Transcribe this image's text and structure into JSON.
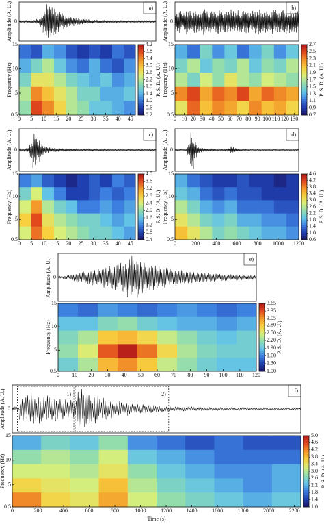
{
  "chart_data": [
    {
      "type": "spectrogram",
      "label": "a)",
      "ylabel": "Amplitude (A. U.)",
      "ylim": [
        -1,
        1
      ],
      "yticks": [
        0
      ],
      "amplitude": [
        0.05,
        0.05,
        0.06,
        0.08,
        0.1,
        0.15,
        0.3,
        0.6,
        0.95,
        0.85,
        0.7,
        0.55,
        0.45,
        0.35,
        0.3,
        0.25,
        0.2,
        0.18,
        0.15,
        0.13,
        0.12,
        0.1,
        0.1,
        0.09,
        0.08,
        0.08,
        0.07,
        0.07,
        0.06,
        0.06,
        0.06,
        0.05,
        0.05,
        0.05,
        0.05,
        0.05,
        0.05,
        0.05,
        0.05,
        0.05
      ],
      "xlim": [
        0,
        47
      ],
      "xticks": [
        0,
        5,
        10,
        15,
        20,
        25,
        30,
        35,
        40,
        45
      ],
      "freq_label": "Frequency (Hz)",
      "flim": [
        0.5,
        15
      ],
      "fticks": [
        0.5,
        5,
        10,
        15
      ],
      "z": [
        [
          1.0,
          0.8,
          1.4,
          1.2,
          0.8,
          0.6,
          0.8,
          0.6,
          1.0,
          0.8
        ],
        [
          1.4,
          1.8,
          2.2,
          1.6,
          1.2,
          1.0,
          1.4,
          1.0,
          0.8,
          1.2
        ],
        [
          1.8,
          2.6,
          2.6,
          2.2,
          1.8,
          1.6,
          1.4,
          1.6,
          1.2,
          1.4
        ],
        [
          2.2,
          3.4,
          3.0,
          2.6,
          2.2,
          1.8,
          1.8,
          1.4,
          1.4,
          1.6
        ],
        [
          2.0,
          3.8,
          3.4,
          2.8,
          2.2,
          2.0,
          1.6,
          1.6,
          1.4,
          1.2
        ]
      ],
      "zlim": [
        0.2,
        4.2
      ],
      "zticks": [
        0.2,
        0.6,
        {
          "value": 1,
          "label": "1.0"
        },
        1.4,
        1.8,
        2.2,
        2.6,
        {
          "value": 3,
          "label": "3.0"
        },
        3.4,
        3.8,
        4.2
      ],
      "colorbar_label": "P. S. D. (A. U.)"
    },
    {
      "type": "spectrogram",
      "label": "b)",
      "ylabel": "Amplitude (A. U.)",
      "ylim": [
        -1,
        1
      ],
      "yticks": [
        0
      ],
      "amplitude": [
        0.55,
        0.62,
        0.48,
        0.7,
        0.58,
        0.5,
        0.66,
        0.6,
        0.52,
        0.72,
        0.56,
        0.6,
        0.5,
        0.64,
        0.7,
        0.54,
        0.6,
        0.58,
        0.66,
        0.5,
        0.62,
        0.56,
        0.68,
        0.6,
        0.52,
        0.64,
        0.58,
        0.7,
        0.55,
        0.6,
        0.5,
        0.66,
        0.62,
        0.56,
        0.6,
        0.68,
        0.54,
        0.62,
        0.58,
        0.6
      ],
      "xlim": [
        0,
        135
      ],
      "xticks": [
        0,
        10,
        20,
        30,
        40,
        50,
        60,
        70,
        80,
        90,
        100,
        110,
        120,
        130
      ],
      "freq_label": "Frequency (Hz)",
      "flim": [
        0.5,
        15
      ],
      "fticks": [
        0.5,
        5,
        10,
        15
      ],
      "z": [
        [
          1.3,
          1.1,
          1.5,
          1.2,
          1.4,
          1.1,
          1.3,
          1.5,
          1.2,
          1.4
        ],
        [
          1.5,
          1.7,
          1.4,
          1.6,
          1.5,
          1.7,
          1.4,
          1.6,
          1.5,
          1.7
        ],
        [
          1.7,
          1.5,
          1.8,
          1.6,
          1.9,
          1.7,
          1.6,
          1.8,
          1.7,
          1.6
        ],
        [
          2.3,
          2.5,
          2.2,
          2.4,
          2.3,
          2.5,
          2.2,
          2.4,
          2.3,
          2.2
        ],
        [
          1.9,
          2.4,
          2.1,
          2.3,
          2.2,
          2.0,
          2.3,
          2.1,
          2.2,
          2.0
        ]
      ],
      "zlim": [
        0.7,
        2.7
      ],
      "zticks": [
        0.7,
        0.9,
        1.1,
        1.3,
        1.5,
        1.7,
        1.9,
        2.1,
        2.3,
        2.5,
        2.7
      ],
      "colorbar_label": "P. S. D. (A. U.)"
    },
    {
      "type": "spectrogram",
      "label": "c)",
      "ylabel": "Amplitude (A. U.)",
      "ylim": [
        -1,
        1
      ],
      "yticks": [
        0
      ],
      "amplitude": [
        0.05,
        0.05,
        0.1,
        0.4,
        0.95,
        0.6,
        0.35,
        0.2,
        0.15,
        0.1,
        0.1,
        0.08,
        0.08,
        0.07,
        0.06,
        0.06,
        0.06,
        0.05,
        0.05,
        0.05,
        0.05,
        0.05,
        0.05,
        0.05,
        0.05,
        0.04,
        0.04,
        0.04,
        0.04,
        0.04,
        0.04,
        0.04,
        0.04,
        0.04,
        0.04,
        0.04,
        0.04,
        0.04,
        0.04,
        0.04
      ],
      "xlim": [
        0,
        47
      ],
      "xticks": [
        0,
        5,
        10,
        15,
        20,
        25,
        30,
        35,
        40,
        45
      ],
      "freq_label": "Frequency (Hz)",
      "flim": [
        0.5,
        15
      ],
      "fticks": [
        0.5,
        5,
        10,
        15
      ],
      "z": [
        [
          1.2,
          1.4,
          1.0,
          0.8,
          0.6,
          0.8,
          1.0,
          0.8,
          1.2,
          1.0
        ],
        [
          1.8,
          2.4,
          1.6,
          1.2,
          0.8,
          0.8,
          1.0,
          1.2,
          1.0,
          1.2
        ],
        [
          2.4,
          3.2,
          2.2,
          1.8,
          1.6,
          1.2,
          1.2,
          1.4,
          1.2,
          1.4
        ],
        [
          2.8,
          3.6,
          2.6,
          2.2,
          2.0,
          1.8,
          1.8,
          1.6,
          1.4,
          1.6
        ],
        [
          2.4,
          3.4,
          2.8,
          2.4,
          2.2,
          2.0,
          1.8,
          1.8,
          1.6,
          1.4
        ]
      ],
      "zlim": [
        0.4,
        4.0
      ],
      "zticks": [
        0.4,
        0.8,
        1.2,
        1.6,
        {
          "value": 2,
          "label": "2.0"
        },
        2.4,
        2.8,
        3.2,
        3.6,
        {
          "value": 4,
          "label": "4.0"
        }
      ],
      "colorbar_label": "P. S. D. (A. U.)"
    },
    {
      "type": "spectrogram",
      "label": "d)",
      "ylabel": "Amplitude (A. U.)",
      "ylim": [
        -1,
        1
      ],
      "yticks": [
        0
      ],
      "amplitude": [
        0.03,
        0.03,
        0.03,
        0.04,
        0.3,
        0.95,
        0.45,
        0.2,
        0.12,
        0.08,
        0.06,
        0.05,
        0.05,
        0.04,
        0.04,
        0.04,
        0.05,
        0.08,
        0.18,
        0.1,
        0.05,
        0.04,
        0.04,
        0.03,
        0.03,
        0.03,
        0.03,
        0.03,
        0.03,
        0.03,
        0.03,
        0.03,
        0.03,
        0.03,
        0.03,
        0.03,
        0.03,
        0.03,
        0.03,
        0.03
      ],
      "xlim": [
        0,
        1200
      ],
      "xticks": [
        0,
        200,
        400,
        600,
        800,
        1000,
        1200
      ],
      "freq_label": "Frequency (Hz)",
      "flim": [
        0.5,
        15
      ],
      "fticks": [
        0.5,
        5,
        10,
        15
      ],
      "z": [
        [
          1.8,
          1.4,
          1.2,
          1.0,
          1.0,
          1.2,
          1.0,
          1.0,
          0.8,
          1.0
        ],
        [
          2.0,
          1.8,
          1.4,
          1.2,
          1.4,
          1.2,
          1.2,
          1.0,
          1.0,
          1.0
        ],
        [
          2.6,
          2.2,
          1.8,
          1.6,
          1.8,
          1.4,
          1.4,
          1.4,
          1.2,
          1.2
        ],
        [
          3.0,
          2.6,
          2.2,
          2.0,
          2.2,
          1.8,
          1.8,
          1.6,
          1.6,
          1.4
        ],
        [
          3.4,
          3.0,
          2.6,
          2.2,
          2.4,
          2.2,
          2.0,
          1.8,
          1.8,
          1.6
        ]
      ],
      "zlim": [
        0.6,
        4.6
      ],
      "zticks": [
        0.6,
        {
          "value": 1,
          "label": "1.0"
        },
        1.4,
        1.8,
        2.2,
        2.6,
        {
          "value": 3,
          "label": "3.0"
        },
        3.4,
        3.8,
        4.2,
        4.6
      ],
      "colorbar_label": "P. S. D. (A. U.)"
    },
    {
      "type": "spectrogram",
      "label": "e)",
      "ylabel": "Amplitude (A. U.)",
      "ylim": [
        -1,
        1
      ],
      "yticks": [
        0
      ],
      "amplitude": [
        0.05,
        0.08,
        0.12,
        0.18,
        0.22,
        0.28,
        0.3,
        0.35,
        0.4,
        0.45,
        0.5,
        0.58,
        0.65,
        0.75,
        0.95,
        0.9,
        0.8,
        0.7,
        0.6,
        0.55,
        0.5,
        0.45,
        0.4,
        0.35,
        0.32,
        0.3,
        0.28,
        0.25,
        0.22,
        0.2,
        0.2,
        0.18,
        0.16,
        0.15,
        0.14,
        0.13,
        0.12,
        0.12,
        0.11,
        0.1
      ],
      "xlim": [
        0,
        120
      ],
      "xticks": [
        0,
        10,
        20,
        30,
        40,
        50,
        60,
        70,
        80,
        90,
        100,
        110,
        120
      ],
      "freq_label": "Frequency (Hz)",
      "flim": [
        0.5,
        15
      ],
      "fticks": [
        0.5,
        5,
        10,
        15
      ],
      "z": [
        [
          1.6,
          1.5,
          1.7,
          1.6,
          1.5,
          1.6,
          1.7,
          1.6,
          1.5,
          1.6
        ],
        [
          1.9,
          1.9,
          2.1,
          2.2,
          2.0,
          1.9,
          1.8,
          1.8,
          1.7,
          1.8
        ],
        [
          2.1,
          2.3,
          2.8,
          2.9,
          2.7,
          2.4,
          2.2,
          2.0,
          1.9,
          2.0
        ],
        [
          2.2,
          2.5,
          3.3,
          3.6,
          3.2,
          2.7,
          2.3,
          2.1,
          2.0,
          2.0
        ],
        [
          2.0,
          2.3,
          2.9,
          3.1,
          2.8,
          2.4,
          2.2,
          2.0,
          1.9,
          1.9
        ]
      ],
      "zlim": [
        1.0,
        3.65
      ],
      "zticks": [
        {
          "value": 1,
          "label": "1.00"
        },
        {
          "value": 1.3,
          "label": "1.30"
        },
        {
          "value": 1.6,
          "label": "1.60"
        },
        {
          "value": 1.9,
          "label": "1.90"
        },
        {
          "value": 2.2,
          "label": "2.20"
        },
        {
          "value": 2.5,
          "label": "2.50"
        },
        {
          "value": 2.8,
          "label": "2.80"
        },
        3.05,
        3.35,
        3.65
      ],
      "colorbar_label": "P. S. D. (A. U.)"
    },
    {
      "type": "spectrogram",
      "label": "f)",
      "ylabel": "Amplitude (A. U.)",
      "ylim": [
        -1,
        1
      ],
      "yticks": [
        0
      ],
      "amplitude": [
        0.1,
        0.55,
        0.7,
        0.65,
        0.6,
        0.55,
        0.5,
        0.45,
        0.4,
        0.95,
        0.85,
        0.65,
        0.5,
        0.4,
        0.35,
        0.3,
        0.25,
        0.22,
        0.2,
        0.18,
        0.15,
        0.12,
        0.1,
        0.1,
        0.09,
        0.08,
        0.08,
        0.07,
        0.07,
        0.06,
        0.06,
        0.06,
        0.06,
        0.05,
        0.05,
        0.05,
        0.05,
        0.05,
        0.05,
        0.05
      ],
      "xlim": [
        0,
        2250
      ],
      "xticks": [
        0,
        200,
        400,
        600,
        800,
        1000,
        1200,
        1400,
        1600,
        1800,
        2000,
        2200
      ],
      "freq_label": "Frequency (Hz)",
      "flim": [
        0.5,
        15
      ],
      "fticks": [
        0.5,
        5,
        10,
        15
      ],
      "z": [
        [
          2.2,
          2.6,
          2.4,
          2.8,
          2.0,
          1.8,
          1.6,
          1.8,
          1.6,
          1.6
        ],
        [
          2.8,
          3.0,
          2.8,
          3.2,
          2.4,
          2.2,
          2.0,
          1.8,
          1.8,
          1.8
        ],
        [
          3.2,
          3.2,
          3.0,
          3.4,
          2.8,
          2.4,
          2.2,
          2.0,
          2.0,
          2.2
        ],
        [
          3.6,
          3.4,
          3.2,
          3.8,
          3.0,
          2.6,
          2.4,
          2.2,
          2.0,
          2.2
        ],
        [
          4.2,
          3.6,
          3.4,
          4.0,
          3.2,
          2.8,
          2.6,
          2.4,
          2.2,
          2.4
        ]
      ],
      "zlim": [
        1.0,
        5.0
      ],
      "zticks": [
        {
          "value": 1,
          "label": "1.0"
        },
        1.4,
        1.8,
        2.2,
        2.6,
        {
          "value": 3,
          "label": "3.0"
        },
        3.4,
        3.8,
        4.2,
        4.6,
        {
          "value": 5,
          "label": "5.0"
        }
      ],
      "colorbar_label": "P. S. D. (A. U.)",
      "annotations": [
        {
          "label": "1)",
          "x": [
            40,
            480
          ]
        },
        {
          "label": "2)",
          "x": [
            490,
            1220
          ]
        }
      ],
      "xlabel": "Time (s)"
    }
  ]
}
